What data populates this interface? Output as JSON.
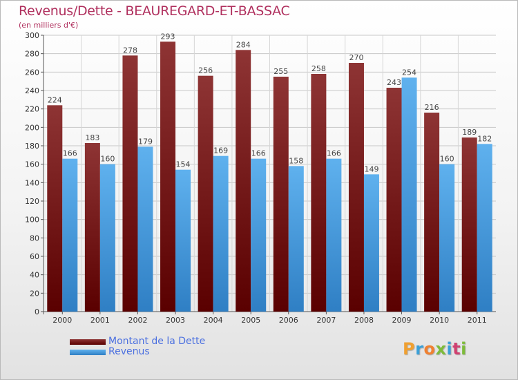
{
  "header": {
    "title": "Revenus/Dette - BEAUREGARD-ET-BASSAC",
    "subtitle": "(en milliers d'€)"
  },
  "logo": {
    "letters": [
      "P",
      "r",
      "o",
      "x",
      "i",
      "t",
      "i"
    ]
  },
  "colors": {
    "title": "#b0305e",
    "debt_bar_top": "#8e3434",
    "debt_bar_bottom": "#5a0000",
    "revenue_bar_top": "#5fb1ee",
    "revenue_bar_bottom": "#2f7fc4",
    "legend_text": "#4a6fe0",
    "logo_letters": [
      "#f0a030",
      "#3aa0d8",
      "#f08030",
      "#7dbb3a",
      "#3aa0d8",
      "#d04070",
      "#7dbb3a"
    ]
  },
  "chart_data": {
    "type": "bar",
    "title": "Revenus/Dette - BEAUREGARD-ET-BASSAC",
    "subtitle": "(en milliers d'€)",
    "categories": [
      "2000",
      "2001",
      "2002",
      "2003",
      "2004",
      "2005",
      "2006",
      "2007",
      "2008",
      "2009",
      "2010",
      "2011"
    ],
    "series": [
      {
        "name": "Montant de la Dette",
        "values": [
          224,
          183,
          278,
          293,
          256,
          284,
          255,
          258,
          270,
          243,
          216,
          189
        ]
      },
      {
        "name": "Revenus",
        "values": [
          166,
          160,
          179,
          154,
          169,
          166,
          158,
          166,
          149,
          254,
          160,
          182
        ]
      }
    ],
    "ylim": [
      0,
      300
    ],
    "ytick_step": 20,
    "grid": true,
    "legend_position": "bottom-left"
  }
}
